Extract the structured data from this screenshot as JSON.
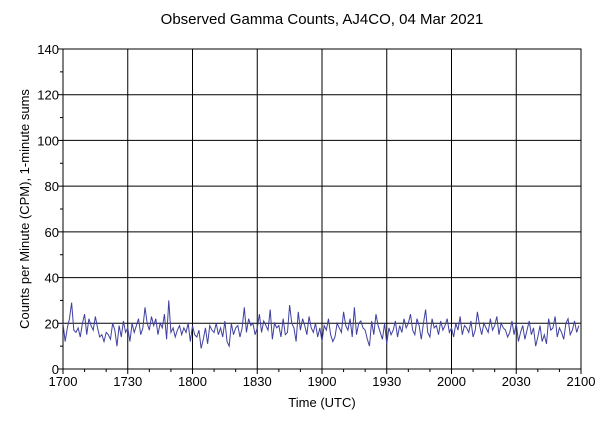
{
  "chart_data": {
    "type": "line",
    "title": "Observed Gamma Counts, AJ4CO, 04 Mar 2021",
    "xlabel": "Time (UTC)",
    "ylabel": "Counts per Minute (CPM), 1-minute sums",
    "x_tick_labels": [
      "1700",
      "1730",
      "1800",
      "1830",
      "1900",
      "1930",
      "2000",
      "2030",
      "2100"
    ],
    "y_tick_labels": [
      "0",
      "20",
      "40",
      "60",
      "80",
      "100",
      "120",
      "140"
    ],
    "xlim_minutes": [
      0,
      240
    ],
    "ylim": [
      0,
      140
    ],
    "grid": true,
    "line_color": "#4040a0",
    "series": [
      {
        "x_minutes_start": 0,
        "x_step_minutes": 1,
        "values": [
          20,
          12,
          18,
          22,
          29,
          17,
          16,
          18,
          14,
          20,
          24,
          15,
          22,
          19,
          17,
          23,
          18,
          14,
          15,
          12,
          16,
          15,
          13,
          20,
          17,
          10,
          19,
          14,
          21,
          16,
          18,
          12,
          20,
          16,
          19,
          22,
          15,
          18,
          27,
          20,
          17,
          23,
          19,
          22,
          15,
          20,
          18,
          24,
          13,
          30,
          16,
          18,
          14,
          17,
          19,
          15,
          18,
          16,
          20,
          12,
          19,
          15,
          14,
          17,
          9,
          13,
          18,
          11,
          19,
          17,
          16,
          20,
          15,
          18,
          14,
          21,
          12,
          10,
          20,
          15,
          18,
          19,
          14,
          18,
          27,
          16,
          22,
          19,
          20,
          15,
          18,
          24,
          16,
          21,
          19,
          17,
          26,
          13,
          20,
          18,
          19,
          14,
          22,
          15,
          16,
          28,
          20,
          18,
          12,
          25,
          17,
          22,
          19,
          15,
          23,
          18,
          16,
          20,
          14,
          18,
          12,
          19,
          17,
          22,
          15,
          12,
          14,
          20,
          18,
          16,
          25,
          19,
          17,
          22,
          14,
          27,
          15,
          20,
          21,
          18,
          17,
          13,
          10,
          21,
          15,
          24,
          19,
          16,
          13,
          20,
          11,
          18,
          15,
          17,
          21,
          14,
          19,
          16,
          22,
          18,
          20,
          24,
          17,
          15,
          22,
          19,
          13,
          20,
          26,
          16,
          14,
          22,
          18,
          19,
          15,
          21,
          17,
          19,
          22,
          16,
          18,
          14,
          20,
          17,
          23,
          15,
          19,
          18,
          16,
          21,
          14,
          17,
          25,
          19,
          15,
          20,
          18,
          16,
          22,
          17,
          19,
          23,
          15,
          20,
          18,
          17,
          14,
          16,
          21,
          15,
          20,
          12,
          16,
          19,
          13,
          17,
          21,
          15,
          18,
          10,
          14,
          19,
          12,
          15,
          11,
          22,
          17,
          18,
          23,
          14,
          18,
          16,
          13,
          20,
          22,
          15,
          17,
          21,
          16,
          19
        ]
      }
    ]
  }
}
